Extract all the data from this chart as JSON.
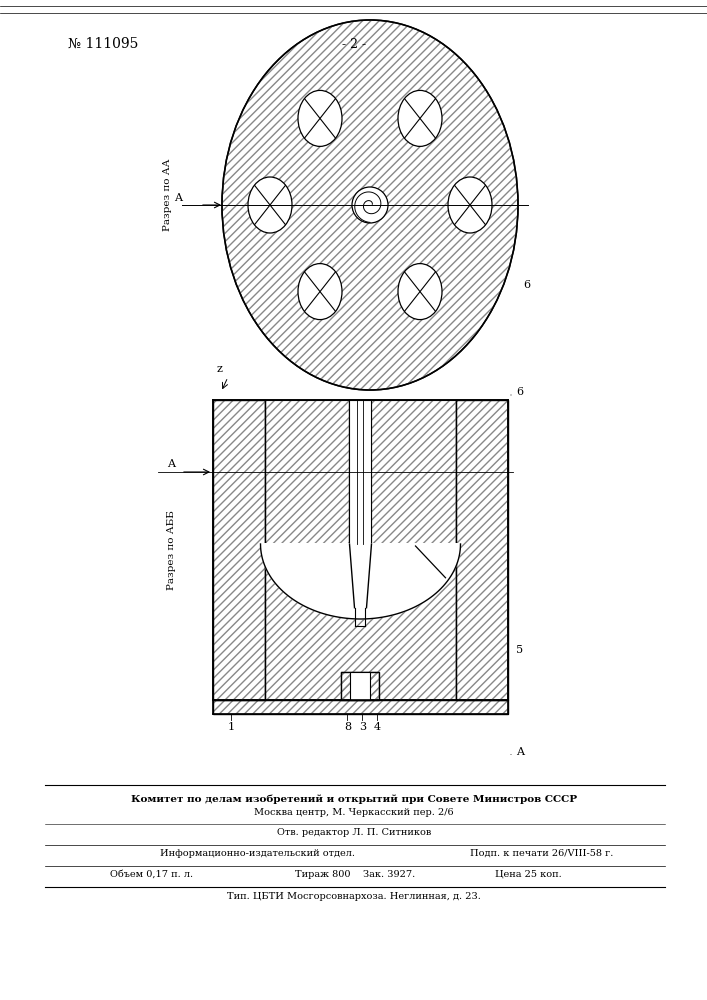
{
  "patent_number": "№ 111095",
  "page_number": "- 2 -",
  "bg_color": "#ffffff",
  "hatch_color": "#444444",
  "line_color": "#000000",
  "label_AA": "Разрез по АА",
  "label_BB": "Разрез по АББ",
  "footer_line1": "Комитет по делам изобретений и открытий при Совете Министров СССР",
  "footer_line2": "Москва центр, М. Черкасский пер. 2/6",
  "footer_line3": "Отв. редактор Л. П. Ситников",
  "footer_line4a": "Информационно-издательский отдел.",
  "footer_line4b": "Подп. к печати 26/VIII-58 г.",
  "footer_line5a": "Объем 0,17 п. л.",
  "footer_line5b": "Тираж 800    Зак. 3927.",
  "footer_line5c": "Цена 25 коп.",
  "footer_line6": "Тип. ЦБТИ Мосгорсовнархоза. Неглинная, д. 23."
}
